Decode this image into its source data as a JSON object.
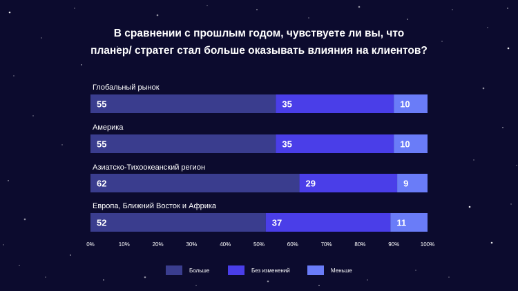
{
  "title_line1": "В сравнении с прошлым годом, чувствуете ли вы, что",
  "title_line2": "планер/ стратег стал больше оказывать влияния на клиентов?",
  "chart_data": {
    "type": "bar",
    "orientation": "horizontal-stacked-100",
    "categories": [
      "Глобальный рынок",
      "Америка",
      "Азиатско-Тихоокеанский регион",
      "Европа, Ближний Восток и Африка"
    ],
    "series": [
      {
        "name": "Больше",
        "color": "#3a3d8e",
        "values": [
          55,
          55,
          62,
          52
        ]
      },
      {
        "name": "Без изменений",
        "color": "#4a3ee8",
        "values": [
          35,
          35,
          29,
          37
        ]
      },
      {
        "name": "Меньше",
        "color": "#6a7cf8",
        "values": [
          10,
          10,
          9,
          11
        ]
      }
    ],
    "xticks": [
      "0%",
      "10%",
      "20%",
      "30%",
      "40%",
      "50%",
      "60%",
      "70%",
      "80%",
      "90%",
      "100%"
    ],
    "xlim": [
      0,
      100
    ],
    "legend": "bottom"
  }
}
